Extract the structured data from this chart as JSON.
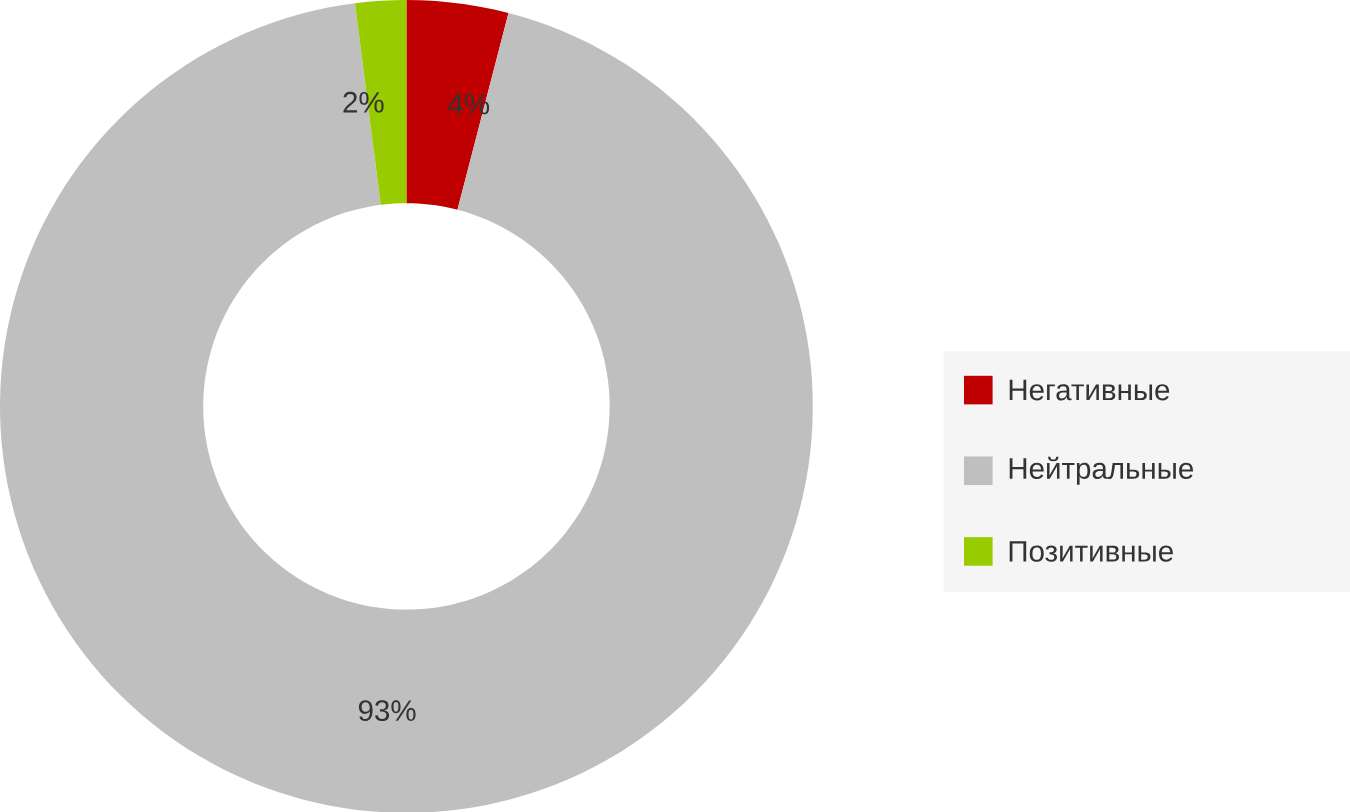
{
  "chart_data": {
    "type": "donut",
    "categories": [
      "Негативные",
      "Нейтральные",
      "Позитивные"
    ],
    "values": [
      4,
      93,
      2
    ],
    "value_labels": [
      "4%",
      "93%",
      "2%"
    ],
    "colors": [
      "#c00000",
      "#bfbfbf",
      "#99cc00"
    ],
    "legend": "right"
  }
}
